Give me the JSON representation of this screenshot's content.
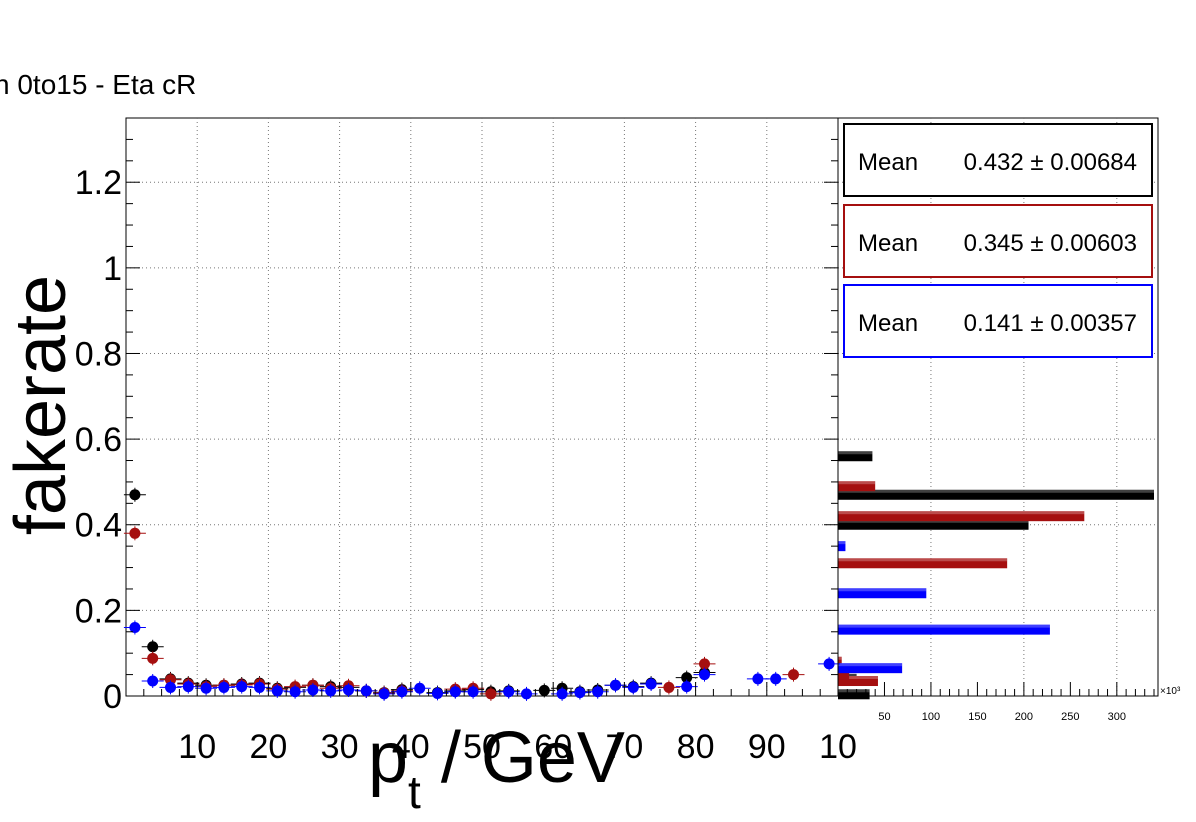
{
  "title": "n 0to15 - Eta cR",
  "chart_data": {
    "type": "scatter",
    "title": "n 0to15 - Eta cR",
    "xlabel": "p_t / GeV",
    "ylabel": "fakerate",
    "xlim": [
      0,
      100
    ],
    "ylim": [
      0,
      1.35
    ],
    "grid": true,
    "x_tick_labels": [
      "10",
      "20",
      "30",
      "40",
      "50",
      "60",
      "70",
      "80",
      "90",
      "10"
    ],
    "y_tick_labels": [
      "0",
      "0.2",
      "0.4",
      "0.6",
      "0.8",
      "1",
      "1.2"
    ],
    "series": [
      {
        "color": "#000000",
        "x": [
          1.25,
          3.75,
          6.25,
          8.75,
          11.25,
          13.75,
          16.25,
          18.75,
          21.25,
          23.75,
          26.25,
          28.75,
          31.25,
          33.75,
          36.25,
          38.75,
          43.75,
          46.25,
          48.75,
          51.25,
          53.75,
          58.75,
          61.25,
          63.75,
          66.25,
          68.75,
          71.25,
          73.75,
          78.75,
          81.25
        ],
        "y": [
          0.47,
          0.115,
          0.04,
          0.03,
          0.025,
          0.025,
          0.028,
          0.03,
          0.018,
          0.02,
          0.025,
          0.022,
          0.02,
          0.012,
          0.008,
          0.015,
          0.008,
          0.012,
          0.015,
          0.01,
          0.012,
          0.013,
          0.018,
          0.01,
          0.014,
          0.025,
          0.022,
          0.03,
          0.043,
          0.055
        ]
      },
      {
        "color": "#a50f0f",
        "x": [
          1.25,
          3.75,
          6.25,
          8.75,
          11.25,
          13.75,
          16.25,
          18.75,
          21.25,
          23.75,
          26.25,
          28.75,
          31.25,
          33.75,
          36.25,
          38.75,
          46.25,
          48.75,
          51.25,
          76.25,
          81.25,
          93.75
        ],
        "y": [
          0.38,
          0.088,
          0.038,
          0.028,
          0.022,
          0.025,
          0.026,
          0.028,
          0.016,
          0.022,
          0.025,
          0.018,
          0.024,
          0.012,
          0.007,
          0.012,
          0.016,
          0.018,
          0.005,
          0.02,
          0.075,
          0.05
        ]
      },
      {
        "color": "#0000ff",
        "x": [
          1.25,
          3.75,
          6.25,
          8.75,
          11.25,
          13.75,
          16.25,
          18.75,
          21.25,
          23.75,
          26.25,
          28.75,
          31.25,
          33.75,
          36.25,
          38.75,
          41.25,
          43.75,
          46.25,
          48.75,
          53.75,
          56.25,
          61.25,
          63.75,
          66.25,
          68.75,
          71.25,
          73.75,
          78.75,
          81.25,
          88.75,
          91.25,
          98.75
        ],
        "y": [
          0.16,
          0.035,
          0.02,
          0.022,
          0.018,
          0.02,
          0.022,
          0.02,
          0.012,
          0.01,
          0.014,
          0.012,
          0.014,
          0.012,
          0.005,
          0.01,
          0.018,
          0.006,
          0.01,
          0.01,
          0.01,
          0.005,
          0.005,
          0.008,
          0.01,
          0.025,
          0.02,
          0.028,
          0.022,
          0.05,
          0.04,
          0.04,
          0.075
        ]
      }
    ],
    "side_histogram": {
      "type": "bar",
      "orientation": "horizontal",
      "x_axis_multiplier": "×10³",
      "x_tick_labels": [
        "50",
        "100",
        "150",
        "200",
        "250",
        "300"
      ],
      "xlim": [
        0,
        340
      ],
      "series": [
        {
          "color": "#000000",
          "bins": [
            {
              "y": 0.004,
              "count": 34
            },
            {
              "y": 0.04,
              "count": 20
            },
            {
              "y": 0.4,
              "count": 205
            },
            {
              "y": 0.47,
              "count": 340
            },
            {
              "y": 0.56,
              "count": 37
            }
          ]
        },
        {
          "color": "#a50f0f",
          "bins": [
            {
              "y": 0.035,
              "count": 43
            },
            {
              "y": 0.05,
              "count": 12
            },
            {
              "y": 0.08,
              "count": 4
            },
            {
              "y": 0.31,
              "count": 182
            },
            {
              "y": 0.42,
              "count": 265
            },
            {
              "y": 0.49,
              "count": 40
            }
          ]
        },
        {
          "color": "#0000ff",
          "bins": [
            {
              "y": 0.065,
              "count": 69
            },
            {
              "y": 0.155,
              "count": 228
            },
            {
              "y": 0.24,
              "count": 95
            },
            {
              "y": 0.35,
              "count": 8
            }
          ]
        }
      ]
    },
    "stat_boxes": [
      {
        "label": "Mean",
        "value": "0.432 ± 0.00684",
        "color": "#000000"
      },
      {
        "label": "Mean",
        "value": "0.345 ± 0.00603",
        "color": "#a50f0f"
      },
      {
        "label": "Mean",
        "value": "0.141 ± 0.00357",
        "color": "#0000ff"
      }
    ]
  }
}
